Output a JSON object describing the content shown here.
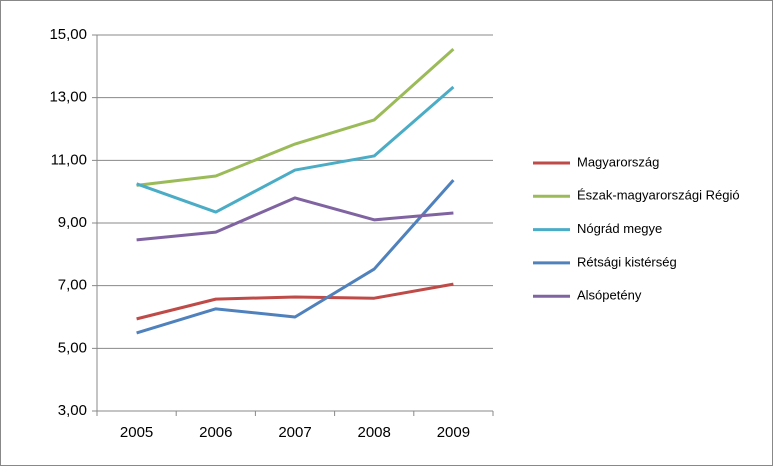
{
  "chart_data": {
    "type": "line",
    "categories": [
      "2005",
      "2006",
      "2007",
      "2008",
      "2009"
    ],
    "series": [
      {
        "name": "Magyarország",
        "color": "#be4b48",
        "values": [
          5.94,
          6.57,
          6.64,
          6.6,
          7.05
        ]
      },
      {
        "name": "Észak-magyarországi Régió",
        "color": "#9bbb59",
        "values": [
          10.2,
          10.5,
          11.52,
          12.29,
          14.55
        ]
      },
      {
        "name": "Nógrád megye",
        "color": "#4bacc6",
        "values": [
          10.25,
          9.35,
          10.69,
          11.14,
          13.34
        ]
      },
      {
        "name": "Rétsági kistérség",
        "color": "#4f81bd",
        "values": [
          5.49,
          6.26,
          6.0,
          7.53,
          10.37
        ]
      },
      {
        "name": "Alsópetény",
        "color": "#8064a2",
        "values": [
          8.46,
          8.71,
          9.8,
          9.1,
          9.32
        ]
      }
    ],
    "ylim": [
      3,
      15
    ],
    "yticks": [
      {
        "value": 3,
        "label": "3,00"
      },
      {
        "value": 5,
        "label": "5,00"
      },
      {
        "value": 7,
        "label": "7,00"
      },
      {
        "value": 9,
        "label": "9,00"
      },
      {
        "value": 11,
        "label": "11,00"
      },
      {
        "value": 13,
        "label": "13,00"
      },
      {
        "value": 15,
        "label": "15,00"
      }
    ],
    "grid": true,
    "legend": "right"
  }
}
